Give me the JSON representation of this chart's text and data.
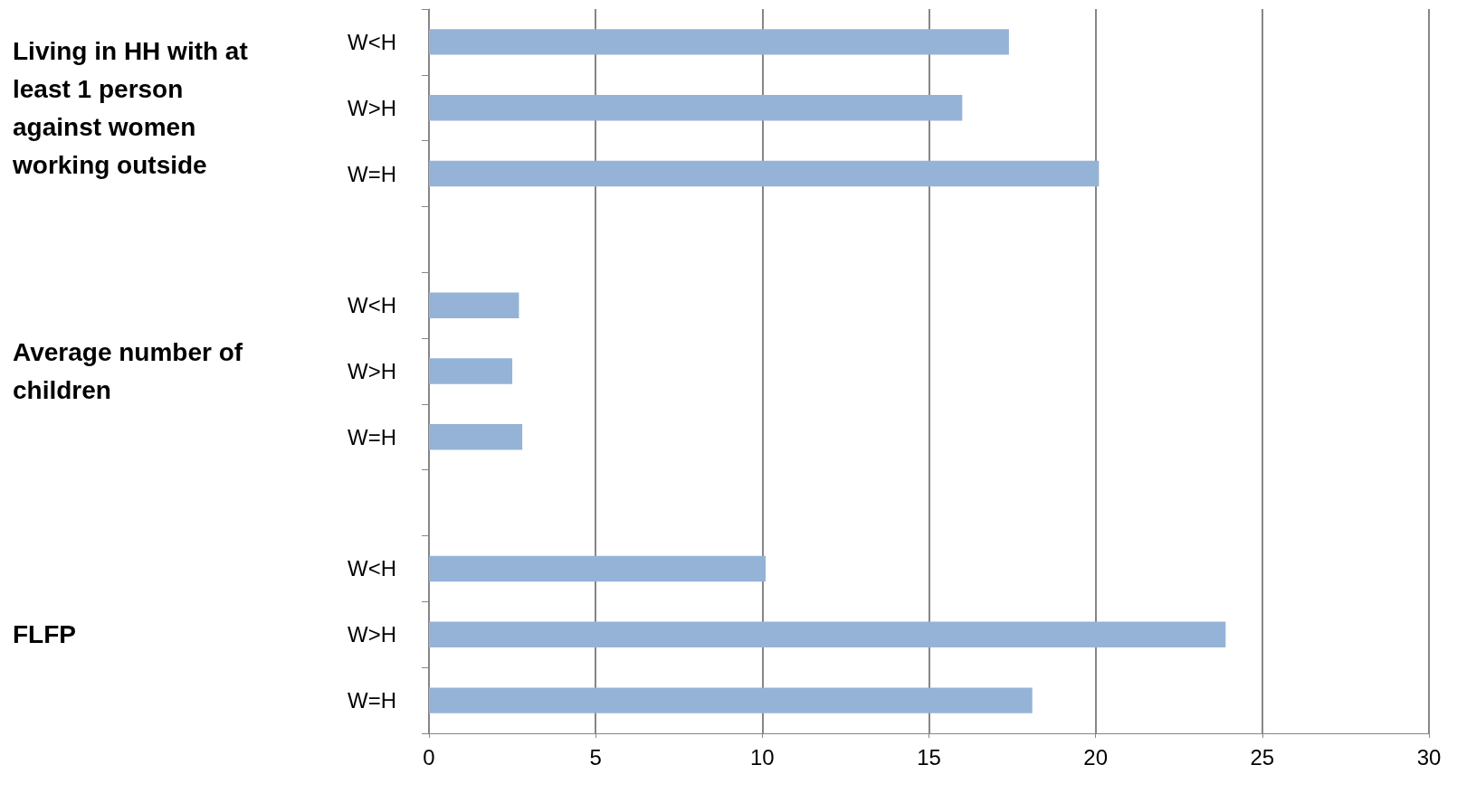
{
  "chart_data": {
    "type": "bar",
    "orientation": "horizontal",
    "categories": [
      "W<H",
      "W>H",
      "W=H",
      null,
      "W<H",
      "W>H",
      "W=H",
      null,
      "W<H",
      "W>H",
      "W=H"
    ],
    "values": [
      17.4,
      16.0,
      20.1,
      null,
      2.7,
      2.5,
      2.8,
      null,
      10.1,
      23.9,
      18.1
    ],
    "color": "#95b3d7",
    "xlim": [
      0,
      30
    ],
    "xticks": [
      0,
      5,
      10,
      15,
      20,
      25,
      30
    ],
    "grid": "x",
    "annotations": [
      "Living in HH with at least 1 person against women working outside",
      "Average number of children",
      "FLFP"
    ]
  }
}
